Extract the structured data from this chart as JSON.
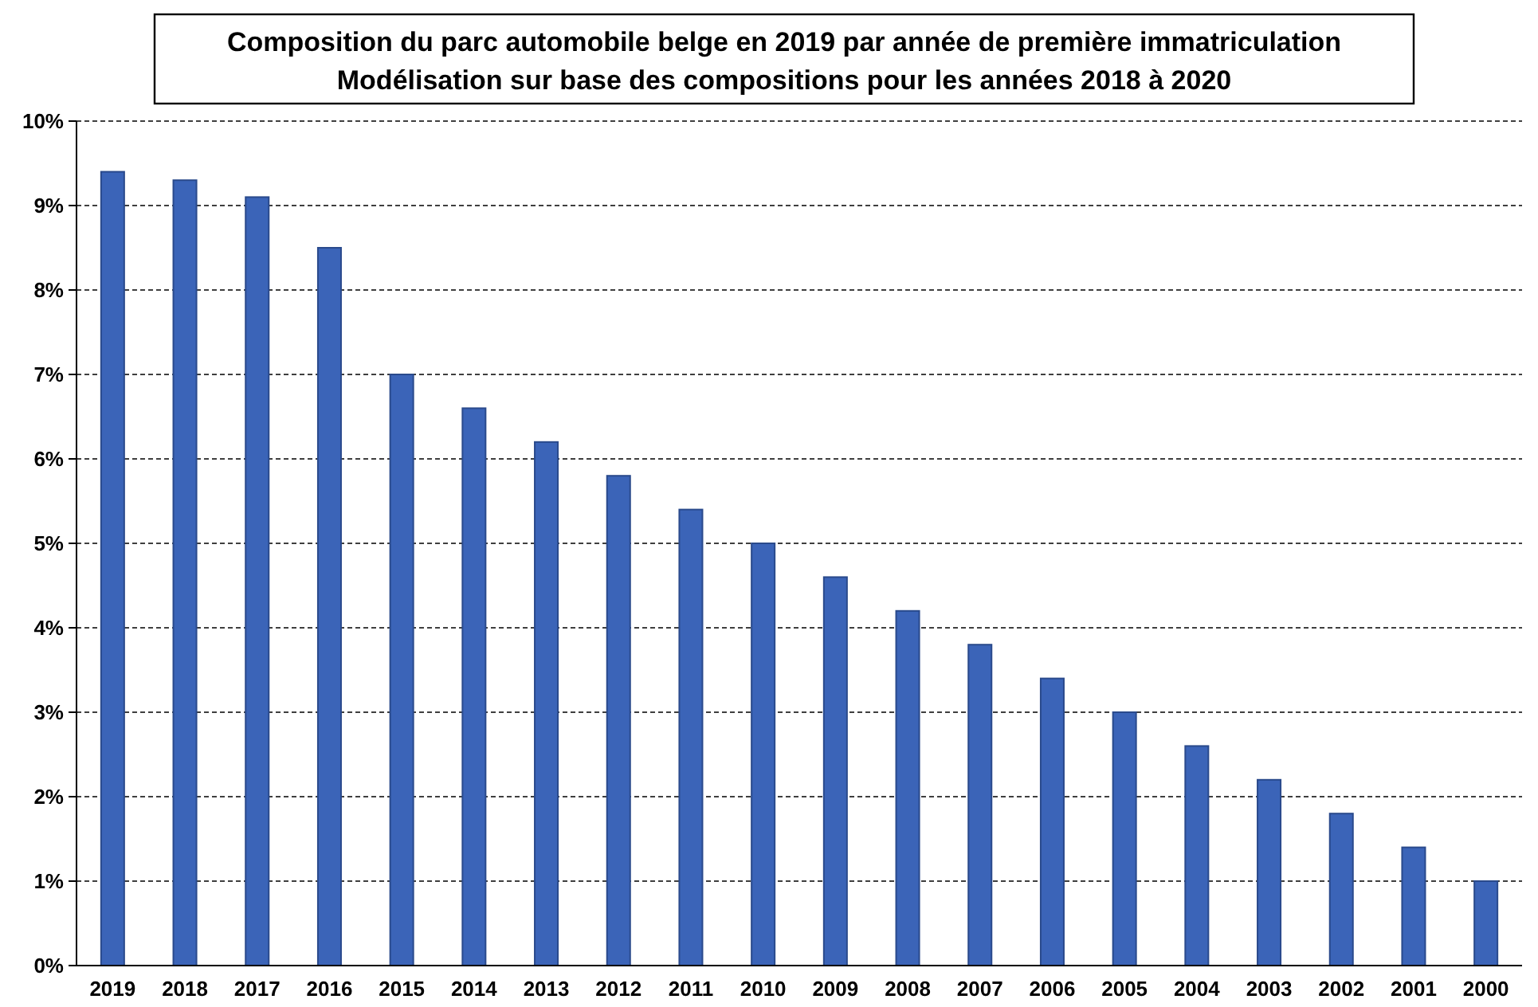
{
  "chart_data": {
    "type": "bar",
    "title": "Composition du parc automobile belge en 2019 par année de première immatriculation",
    "subtitle": "Modélisation sur base des compositions pour les années 2018 à 2020",
    "categories": [
      "2019",
      "2018",
      "2017",
      "2016",
      "2015",
      "2014",
      "2013",
      "2012",
      "2011",
      "2010",
      "2009",
      "2008",
      "2007",
      "2006",
      "2005",
      "2004",
      "2003",
      "2002",
      "2001",
      "2000"
    ],
    "values": [
      9.4,
      9.3,
      9.1,
      8.5,
      7.0,
      6.6,
      6.2,
      5.8,
      5.4,
      5.0,
      4.6,
      4.2,
      3.8,
      3.4,
      3.0,
      2.6,
      2.2,
      1.8,
      1.4,
      1.0
    ],
    "color": "#3b64b8",
    "ylim": [
      0,
      10
    ],
    "yticks": [
      {
        "value": 0,
        "label": "0%"
      },
      {
        "value": 1,
        "label": "1%"
      },
      {
        "value": 2,
        "label": "2%"
      },
      {
        "value": 3,
        "label": "3%"
      },
      {
        "value": 4,
        "label": "4%"
      },
      {
        "value": 5,
        "label": "5%"
      },
      {
        "value": 6,
        "label": "6%"
      },
      {
        "value": 7,
        "label": "7%"
      },
      {
        "value": 8,
        "label": "8%"
      },
      {
        "value": 9,
        "label": "9%"
      },
      {
        "value": 10,
        "label": "10%"
      }
    ],
    "grid": "y"
  }
}
